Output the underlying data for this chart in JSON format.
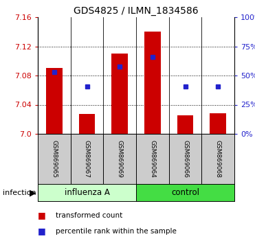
{
  "title": "GDS4825 / ILMN_1834586",
  "samples": [
    "GSM869065",
    "GSM869067",
    "GSM869069",
    "GSM869064",
    "GSM869066",
    "GSM869068"
  ],
  "groups": [
    "influenza A",
    "influenza A",
    "influenza A",
    "control",
    "control",
    "control"
  ],
  "group_labels": [
    "influenza A",
    "control"
  ],
  "bar_values": [
    7.09,
    7.027,
    7.11,
    7.14,
    7.025,
    7.028
  ],
  "bar_base": 7.0,
  "blue_dot_values": [
    7.085,
    7.065,
    7.092,
    7.105,
    7.065,
    7.065
  ],
  "bar_color": "#cc0000",
  "dot_color": "#2222cc",
  "ylim_left": [
    7.0,
    7.16
  ],
  "yticks_left": [
    7.0,
    7.04,
    7.08,
    7.12,
    7.16
  ],
  "yticks_right": [
    0,
    25,
    50,
    75,
    100
  ],
  "ylabel_left_color": "#cc0000",
  "ylabel_right_color": "#2222cc",
  "bg_color": "#ffffff",
  "plot_bg": "#ffffff",
  "legend_red_label": "transformed count",
  "legend_blue_label": "percentile rank within the sample",
  "infection_label": "infection",
  "group_box_color_influenza": "#ccffcc",
  "group_box_color_control": "#44dd44",
  "sample_box_color": "#cccccc",
  "group_split": 3
}
